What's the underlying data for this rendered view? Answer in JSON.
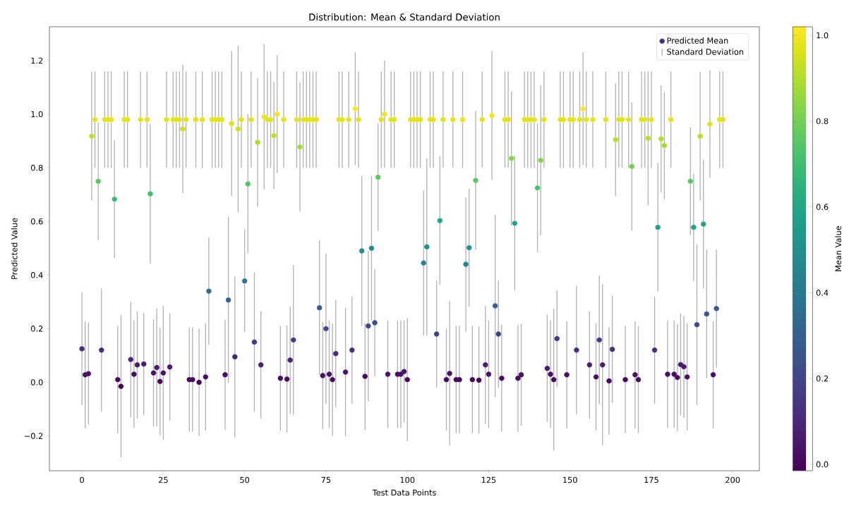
{
  "chart_data": {
    "type": "scatter",
    "title": "Distribution: Mean & Standard Deviation",
    "xlabel": "Test Data Points",
    "ylabel": "Predicted Value",
    "clabel": "Mean Value",
    "annotations": [
      "Standard Deviation"
    ],
    "x": [
      0,
      1,
      2,
      3,
      4,
      5,
      6,
      7,
      8,
      9,
      10,
      11,
      12,
      13,
      14,
      15,
      16,
      17,
      18,
      19,
      20,
      21,
      22,
      23,
      24,
      25,
      26,
      27,
      28,
      29,
      30,
      31,
      32,
      33,
      34,
      35,
      36,
      37,
      38,
      39,
      40,
      41,
      42,
      43,
      44,
      45,
      46,
      47,
      48,
      49,
      50,
      51,
      52,
      53,
      54,
      55,
      56,
      57,
      58,
      59,
      60,
      61,
      62,
      63,
      64,
      65,
      66,
      67,
      68,
      69,
      70,
      71,
      72,
      73,
      74,
      75,
      76,
      77,
      78,
      79,
      80,
      81,
      82,
      83,
      84,
      85,
      86,
      87,
      88,
      89,
      90,
      91,
      92,
      93,
      94,
      95,
      96,
      97,
      98,
      99,
      100,
      101,
      102,
      103,
      104,
      105,
      106,
      107,
      108,
      109,
      110,
      111,
      112,
      113,
      114,
      115,
      116,
      117,
      118,
      119,
      120,
      121,
      122,
      123,
      124,
      125,
      126,
      127,
      128,
      129,
      130,
      131,
      132,
      133,
      134,
      135,
      136,
      137,
      138,
      139,
      140,
      141,
      142,
      143,
      144,
      145,
      146,
      147,
      148,
      149,
      150,
      151,
      152,
      153,
      154,
      155,
      156,
      157,
      158,
      159,
      160,
      161,
      162,
      163,
      164,
      165,
      166,
      167,
      168,
      169,
      170,
      171,
      172,
      173,
      174,
      175,
      176,
      177,
      178,
      179,
      180,
      181,
      182,
      183,
      184,
      185,
      186,
      187,
      188,
      189,
      190,
      191,
      192,
      193,
      194,
      195,
      196,
      197
    ],
    "series": [
      {
        "name": "Predicted Mean",
        "marker": "circle",
        "values": [
          0.125,
          0.028,
          0.032,
          0.918,
          0.98,
          0.75,
          0.12,
          0.98,
          0.98,
          0.98,
          0.683,
          0.01,
          -0.015,
          0.98,
          0.98,
          0.085,
          0.03,
          0.065,
          0.98,
          0.068,
          0.98,
          0.703,
          0.035,
          0.055,
          0.003,
          0.035,
          0.98,
          0.057,
          0.98,
          0.98,
          0.98,
          0.945,
          0.98,
          0.01,
          0.01,
          0.98,
          0.0,
          0.98,
          0.02,
          0.34,
          0.98,
          0.98,
          0.98,
          0.98,
          0.028,
          0.307,
          0.965,
          0.095,
          0.945,
          0.98,
          0.378,
          0.74,
          0.98,
          0.15,
          0.895,
          0.065,
          0.99,
          0.98,
          0.98,
          0.92,
          1.0,
          0.015,
          0.98,
          0.012,
          0.083,
          0.158,
          0.98,
          0.878,
          0.98,
          0.98,
          0.98,
          0.98,
          0.98,
          0.278,
          0.025,
          0.2,
          0.03,
          0.01,
          0.107,
          0.98,
          0.98,
          0.038,
          0.98,
          0.12,
          1.02,
          0.98,
          0.49,
          0.022,
          0.21,
          0.5,
          0.222,
          0.765,
          0.98,
          1.0,
          0.03,
          0.98,
          0.98,
          0.03,
          0.03,
          0.04,
          0.01,
          0.98,
          0.98,
          0.98,
          0.98,
          0.445,
          0.505,
          0.98,
          0.98,
          0.18,
          0.603,
          0.98,
          0.01,
          0.033,
          0.98,
          0.01,
          0.01,
          0.98,
          0.44,
          0.502,
          0.01,
          0.753,
          0.008,
          0.98,
          0.065,
          0.03,
          0.995,
          0.285,
          0.18,
          0.015,
          0.98,
          0.98,
          0.835,
          0.593,
          0.015,
          0.028,
          0.98,
          0.98,
          0.98,
          0.98,
          0.725,
          0.828,
          0.98,
          0.052,
          0.03,
          0.01,
          0.163,
          0.98,
          0.98,
          0.028,
          0.98,
          0.98,
          0.12,
          0.98,
          1.02,
          0.98,
          0.065,
          0.98,
          0.02,
          0.158,
          0.065,
          0.98,
          0.005,
          0.123,
          0.905,
          0.98,
          0.98,
          0.01,
          0.98,
          0.805,
          0.028,
          0.01,
          0.98,
          0.98,
          0.91,
          0.98,
          0.12,
          0.578,
          0.908,
          0.883,
          0.03,
          0.98,
          0.03,
          0.018,
          0.066,
          0.058,
          0.02,
          0.75,
          0.578,
          0.215,
          0.918,
          0.59,
          0.255,
          0.963,
          0.028,
          0.275,
          0.98,
          0.98
        ],
        "cvalues": [
          0.125,
          0.028,
          0.032,
          0.918,
          0.98,
          0.75,
          0.12,
          0.98,
          0.98,
          0.98,
          0.683,
          0.01,
          -0.015,
          0.98,
          0.98,
          0.085,
          0.03,
          0.065,
          0.98,
          0.068,
          0.98,
          0.703,
          0.035,
          0.055,
          0.003,
          0.035,
          0.98,
          0.057,
          0.98,
          0.98,
          0.98,
          0.945,
          0.98,
          0.01,
          0.01,
          0.98,
          0.0,
          0.98,
          0.02,
          0.34,
          0.98,
          0.98,
          0.98,
          0.98,
          0.028,
          0.307,
          0.965,
          0.095,
          0.945,
          0.98,
          0.378,
          0.74,
          0.98,
          0.15,
          0.895,
          0.065,
          0.99,
          0.98,
          0.98,
          0.92,
          1.0,
          0.015,
          0.98,
          0.012,
          0.083,
          0.158,
          0.98,
          0.878,
          0.98,
          0.98,
          0.98,
          0.98,
          0.98,
          0.278,
          0.025,
          0.2,
          0.03,
          0.01,
          0.107,
          0.98,
          0.98,
          0.038,
          0.98,
          0.12,
          1.02,
          0.98,
          0.49,
          0.022,
          0.21,
          0.5,
          0.222,
          0.765,
          0.98,
          1.0,
          0.03,
          0.98,
          0.98,
          0.03,
          0.03,
          0.04,
          0.01,
          0.98,
          0.98,
          0.98,
          0.98,
          0.445,
          0.505,
          0.98,
          0.98,
          0.18,
          0.603,
          0.98,
          0.01,
          0.033,
          0.98,
          0.01,
          0.01,
          0.98,
          0.44,
          0.502,
          0.01,
          0.753,
          0.008,
          0.98,
          0.065,
          0.03,
          0.995,
          0.285,
          0.18,
          0.015,
          0.98,
          0.98,
          0.835,
          0.593,
          0.015,
          0.028,
          0.98,
          0.98,
          0.98,
          0.98,
          0.725,
          0.828,
          0.98,
          0.052,
          0.03,
          0.01,
          0.163,
          0.98,
          0.98,
          0.028,
          0.98,
          0.98,
          0.12,
          0.98,
          1.02,
          0.98,
          0.065,
          0.98,
          0.02,
          0.158,
          0.065,
          0.98,
          0.005,
          0.123,
          0.905,
          0.98,
          0.98,
          0.01,
          0.98,
          0.805,
          0.028,
          0.01,
          0.98,
          0.98,
          0.91,
          0.98,
          0.12,
          0.578,
          0.908,
          0.883,
          0.03,
          0.98,
          0.03,
          0.018,
          0.066,
          0.058,
          0.02,
          0.75,
          0.578,
          0.215,
          0.918,
          0.59,
          0.255,
          0.963,
          0.028,
          0.275,
          0.98,
          0.98
        ],
        "errors": [
          0.21,
          0.2,
          0.19,
          0.24,
          0.18,
          0.22,
          0.23,
          0.18,
          0.18,
          0.18,
          0.22,
          0.2,
          0.265,
          0.18,
          0.18,
          0.215,
          0.2,
          0.2,
          0.18,
          0.19,
          0.18,
          0.26,
          0.2,
          0.22,
          0.2,
          0.25,
          0.18,
          0.2,
          0.18,
          0.18,
          0.18,
          0.24,
          0.18,
          0.195,
          0.195,
          0.18,
          0.2,
          0.18,
          0.2,
          0.2,
          0.18,
          0.18,
          0.18,
          0.18,
          0.205,
          0.31,
          0.27,
          0.3,
          0.31,
          0.18,
          0.19,
          0.26,
          0.18,
          0.26,
          0.24,
          0.2,
          0.27,
          0.18,
          0.18,
          0.2,
          0.22,
          0.195,
          0.18,
          0.2,
          0.2,
          0.28,
          0.18,
          0.24,
          0.18,
          0.18,
          0.18,
          0.18,
          0.18,
          0.25,
          0.2,
          0.28,
          0.2,
          0.21,
          0.2,
          0.18,
          0.18,
          0.24,
          0.18,
          0.2,
          0.21,
          0.18,
          0.28,
          0.2,
          0.28,
          0.27,
          0.2,
          0.2,
          0.18,
          0.2,
          0.2,
          0.18,
          0.18,
          0.2,
          0.2,
          0.19,
          0.23,
          0.18,
          0.18,
          0.18,
          0.18,
          0.27,
          0.33,
          0.18,
          0.18,
          0.2,
          0.24,
          0.18,
          0.19,
          0.27,
          0.18,
          0.2,
          0.2,
          0.18,
          0.25,
          0.22,
          0.2,
          0.26,
          0.2,
          0.18,
          0.22,
          0.2,
          0.24,
          0.34,
          0.2,
          0.2,
          0.18,
          0.18,
          0.25,
          0.25,
          0.2,
          0.19,
          0.18,
          0.18,
          0.18,
          0.18,
          0.24,
          0.28,
          0.18,
          0.2,
          0.2,
          0.265,
          0.18,
          0.18,
          0.18,
          0.2,
          0.18,
          0.18,
          0.24,
          0.18,
          0.21,
          0.18,
          0.2,
          0.18,
          0.2,
          0.24,
          0.3,
          0.18,
          0.2,
          0.2,
          0.21,
          0.18,
          0.18,
          0.2,
          0.18,
          0.24,
          0.2,
          0.2,
          0.18,
          0.18,
          0.25,
          0.18,
          0.2,
          0.24,
          0.2,
          0.2,
          0.2,
          0.18,
          0.2,
          0.2,
          0.19,
          0.19,
          0.2,
          0.2,
          0.2,
          0.3,
          0.24,
          0.24,
          0.24,
          0.2,
          0.2,
          0.22,
          0.18,
          0.18
        ]
      }
    ],
    "xlim": [
      -10,
      208.2
    ],
    "ylim": [
      -0.33,
      1.326
    ],
    "xticks": [
      0,
      25,
      50,
      75,
      100,
      125,
      150,
      175,
      200
    ],
    "yticks": [
      {
        "value": -0.2,
        "label": "−0.2"
      },
      {
        "value": 0,
        "label": "0.0"
      },
      {
        "value": 0.2,
        "label": "0.2"
      },
      {
        "value": 0.4,
        "label": "0.4"
      },
      {
        "value": 0.6,
        "label": "0.6"
      },
      {
        "value": 0.8,
        "label": "0.8"
      },
      {
        "value": 1.0,
        "label": "1.0"
      },
      {
        "value": 1.2,
        "label": "1.2"
      }
    ],
    "clim": [
      -0.015,
      1.02
    ],
    "cticks": [
      {
        "value": 0,
        "label": "0.0"
      },
      {
        "value": 0.2,
        "label": "0.2"
      },
      {
        "value": 0.4,
        "label": "0.4"
      },
      {
        "value": 0.6,
        "label": "0.6"
      },
      {
        "value": 0.8,
        "label": "0.8"
      },
      {
        "value": 1.0,
        "label": "1.0"
      }
    ],
    "legend": "top right",
    "grid": false
  }
}
